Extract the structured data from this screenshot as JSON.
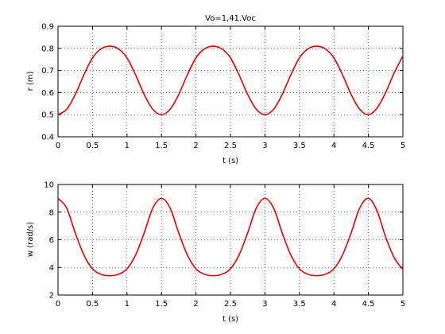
{
  "chart_data": [
    {
      "type": "line",
      "title": "Vo=1,41.Voc",
      "xlabel": "t (s)",
      "ylabel": "r (m)",
      "xlim": [
        0,
        5
      ],
      "ylim": [
        0.4,
        0.9
      ],
      "xticks": [
        0,
        0.5,
        1,
        1.5,
        2,
        2.5,
        3,
        3.5,
        4,
        4.5,
        5
      ],
      "xtick_labels": [
        "0",
        "0.5",
        "1",
        "1.5",
        "2",
        "2.5",
        "3",
        "3.5",
        "4",
        "4.5",
        "5"
      ],
      "yticks": [
        0.4,
        0.5,
        0.6,
        0.7,
        0.8,
        0.9
      ],
      "ytick_labels": [
        "0.4",
        "0.5",
        "0.6",
        "0.7",
        "0.8",
        "0.9"
      ],
      "grid": true,
      "color": "#dd0000",
      "series": [
        {
          "x": [
            0,
            0.125,
            0.25,
            0.375,
            0.5,
            0.625,
            0.75,
            0.875,
            1.0,
            1.125,
            1.25,
            1.375,
            1.5,
            1.625,
            1.75,
            1.875,
            2.0,
            2.125,
            2.25,
            2.375,
            2.5,
            2.625,
            2.75,
            2.875,
            3.0,
            3.125,
            3.25,
            3.375,
            3.5,
            3.625,
            3.75,
            3.875,
            4.0,
            4.125,
            4.25,
            4.375,
            4.5,
            4.625,
            4.75,
            4.875,
            5.0
          ],
          "y": [
            0.5,
            0.524,
            0.591,
            0.68,
            0.757,
            0.798,
            0.81,
            0.798,
            0.757,
            0.68,
            0.591,
            0.524,
            0.5,
            0.524,
            0.591,
            0.68,
            0.757,
            0.798,
            0.81,
            0.798,
            0.757,
            0.68,
            0.591,
            0.524,
            0.5,
            0.524,
            0.591,
            0.68,
            0.757,
            0.798,
            0.81,
            0.798,
            0.757,
            0.68,
            0.591,
            0.524,
            0.5,
            0.53,
            0.6,
            0.69,
            0.765
          ]
        }
      ]
    },
    {
      "type": "line",
      "title": "",
      "xlabel": "t (s)",
      "ylabel": "w (rad/s)",
      "xlim": [
        0,
        5
      ],
      "ylim": [
        2,
        10
      ],
      "xticks": [
        0,
        0.5,
        1,
        1.5,
        2,
        2.5,
        3,
        3.5,
        4,
        4.5,
        5
      ],
      "xtick_labels": [
        "0",
        "0.5",
        "1",
        "1.5",
        "2",
        "2.5",
        "3",
        "3.5",
        "4",
        "4.5",
        "5"
      ],
      "yticks": [
        2,
        4,
        6,
        8,
        10
      ],
      "ytick_labels": [
        "2",
        "4",
        "6",
        "8",
        "10"
      ],
      "grid": true,
      "color": "#dd0000",
      "series": [
        {
          "x": [
            0,
            0.125,
            0.25,
            0.375,
            0.5,
            0.625,
            0.75,
            0.875,
            1.0,
            1.125,
            1.25,
            1.375,
            1.5,
            1.625,
            1.75,
            1.875,
            2.0,
            2.125,
            2.25,
            2.375,
            2.5,
            2.625,
            2.75,
            2.875,
            3.0,
            3.125,
            3.25,
            3.375,
            3.5,
            3.625,
            3.75,
            3.875,
            4.0,
            4.125,
            4.25,
            4.375,
            4.5,
            4.625,
            4.75,
            4.875,
            5.0
          ],
          "y": [
            9.0,
            8.3,
            6.5,
            4.9,
            3.9,
            3.5,
            3.4,
            3.5,
            3.9,
            4.9,
            6.5,
            8.3,
            9.0,
            8.3,
            6.5,
            4.9,
            3.9,
            3.5,
            3.4,
            3.5,
            3.9,
            4.9,
            6.5,
            8.3,
            9.0,
            8.3,
            6.5,
            4.9,
            3.9,
            3.5,
            3.4,
            3.5,
            3.9,
            4.9,
            6.5,
            8.3,
            9.0,
            8.1,
            6.2,
            4.7,
            3.85
          ]
        }
      ]
    }
  ]
}
